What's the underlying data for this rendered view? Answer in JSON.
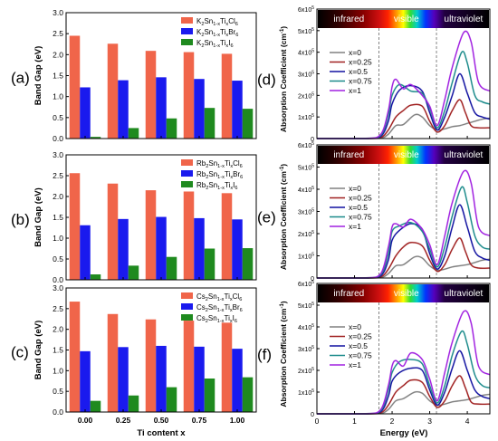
{
  "colors": {
    "bar_cl": "#f0654a",
    "bar_br": "#1a1aee",
    "bar_i": "#1f8a1f",
    "line_x0": "#808080",
    "line_x025": "#a02020",
    "line_x05": "#1010a0",
    "line_x075": "#1a8a8a",
    "line_x1": "#a020e0"
  },
  "bar_panels": {
    "x_axis_label": "Ti content x",
    "categories": [
      "0.00",
      "0.25",
      "0.50",
      "0.75",
      "1.00"
    ],
    "y_axis_label": "Band Gap (eV)",
    "y_ticks": [
      "0.0",
      "0.5",
      "1.0",
      "1.5",
      "2.0",
      "2.5",
      "3.0"
    ],
    "panels": [
      {
        "label": "(a)",
        "legend": [
          [
            "K",
            "2",
            "Sn",
            "1-x",
            "Ti",
            "x",
            "Cl",
            "6"
          ],
          [
            "K",
            "2",
            "Sn",
            "1-x",
            "Ti",
            "x",
            "Br",
            "6"
          ],
          [
            "K",
            "2",
            "Sn",
            "1-x",
            "Ti",
            "x",
            "I",
            "6"
          ]
        ]
      },
      {
        "label": "(b)",
        "legend": [
          [
            "Rb",
            "2",
            "Sn",
            "1-x",
            "Ti",
            "x",
            "Cl",
            "6"
          ],
          [
            "Rb",
            "2",
            "Sn",
            "1-x",
            "Ti",
            "x",
            "Br",
            "6"
          ],
          [
            "Rb",
            "2",
            "Sn",
            "1-x",
            "Ti",
            "x",
            "I",
            "6"
          ]
        ]
      },
      {
        "label": "(c)",
        "legend": [
          [
            "Cs",
            "2",
            "Sn",
            "1-x",
            "Ti",
            "x",
            "Cl",
            "6"
          ],
          [
            "Cs",
            "2",
            "Sn",
            "1-x",
            "Ti",
            "x",
            "Br",
            "6"
          ],
          [
            "Cs",
            "2",
            "Sn",
            "1-x",
            "Ti",
            "x",
            "I",
            "6"
          ]
        ]
      }
    ]
  },
  "line_panels": {
    "x_axis_label": "Energy (eV)",
    "x_ticks": [
      "0",
      "1",
      "2",
      "3",
      "4"
    ],
    "y_axis_label": "Absorption Coefficient (cm",
    "y_axis_label_sup": "-1",
    "y_axis_label_end": ")",
    "y_ticks": [
      [
        "0",
        ""
      ],
      [
        "1x10",
        "5"
      ],
      [
        "2x10",
        "5"
      ],
      [
        "3x10",
        "5"
      ],
      [
        "4x10",
        "5"
      ],
      [
        "5x10",
        "5"
      ],
      [
        "6x10",
        "5"
      ]
    ],
    "band_labels": [
      "infrared",
      "visible",
      "ultraviolet"
    ],
    "legend": [
      "x=0",
      "x=0.25",
      "x=0.5",
      "x=0.75",
      "x=1"
    ],
    "panels": [
      {
        "label": "(d)"
      },
      {
        "label": "(e)"
      },
      {
        "label": "(f)"
      }
    ]
  },
  "chart_data": [
    {
      "type": "bar",
      "panel": "(a)",
      "categories": [
        "0.00",
        "0.25",
        "0.50",
        "0.75",
        "1.00"
      ],
      "ylim": [
        0,
        3.0
      ],
      "ylabel": "Band Gap (eV)",
      "series": [
        {
          "name": "K2Sn1-xTixCl6",
          "values": [
            2.45,
            2.26,
            2.09,
            2.06,
            2.02
          ]
        },
        {
          "name": "K2Sn1-xTixBr6",
          "values": [
            1.22,
            1.39,
            1.46,
            1.42,
            1.38
          ]
        },
        {
          "name": "K2Sn1-xTixI6",
          "values": [
            0.04,
            0.25,
            0.48,
            0.73,
            0.71
          ]
        }
      ]
    },
    {
      "type": "bar",
      "panel": "(b)",
      "categories": [
        "0.00",
        "0.25",
        "0.50",
        "0.75",
        "1.00"
      ],
      "ylim": [
        0,
        3.0
      ],
      "ylabel": "Band Gap (eV)",
      "series": [
        {
          "name": "Rb2Sn1-xTixCl6",
          "values": [
            2.56,
            2.31,
            2.15,
            2.12,
            2.08
          ]
        },
        {
          "name": "Rb2Sn1-xTixBr6",
          "values": [
            1.31,
            1.46,
            1.51,
            1.48,
            1.45
          ]
        },
        {
          "name": "Rb2Sn1-xTixI6",
          "values": [
            0.13,
            0.34,
            0.55,
            0.75,
            0.76
          ]
        }
      ]
    },
    {
      "type": "bar",
      "panel": "(c)",
      "categories": [
        "0.00",
        "0.25",
        "0.50",
        "0.75",
        "1.00"
      ],
      "ylim": [
        0,
        3.0
      ],
      "ylabel": "Band Gap (eV)",
      "series": [
        {
          "name": "Cs2Sn1-xTixCl6",
          "values": [
            2.67,
            2.37,
            2.24,
            2.21,
            2.16
          ]
        },
        {
          "name": "Cs2Sn1-xTixBr6",
          "values": [
            1.47,
            1.57,
            1.6,
            1.58,
            1.53
          ]
        },
        {
          "name": "Cs2Sn1-xTixI6",
          "values": [
            0.27,
            0.4,
            0.6,
            0.81,
            0.84
          ]
        }
      ]
    },
    {
      "type": "line",
      "panel": "(d)",
      "xlim": [
        0,
        4.6
      ],
      "ylim": [
        0,
        600000
      ],
      "xlabel": "Energy (eV)",
      "series": [
        {
          "name": "x=0",
          "x": [
            0,
            1.2,
            1.7,
            1.9,
            2.1,
            2.3,
            2.6,
            2.8,
            3.0,
            3.2,
            3.4,
            3.6,
            3.8,
            4.0,
            4.2,
            4.4,
            4.6
          ],
          "y": [
            0,
            0,
            2000,
            20000,
            60000,
            65000,
            110000,
            100000,
            60000,
            40000,
            45000,
            55000,
            60000,
            70000,
            80000,
            90000,
            95000
          ]
        },
        {
          "name": "x=0.25",
          "x": [
            0,
            1.3,
            1.7,
            1.9,
            2.1,
            2.3,
            2.5,
            2.8,
            3.0,
            3.2,
            3.4,
            3.6,
            3.8,
            3.95,
            4.1,
            4.3,
            4.6
          ],
          "y": [
            0,
            0,
            5000,
            40000,
            100000,
            130000,
            155000,
            150000,
            80000,
            30000,
            60000,
            130000,
            180000,
            120000,
            60000,
            50000,
            50000
          ]
        },
        {
          "name": "x=0.5",
          "x": [
            0,
            1.3,
            1.7,
            1.9,
            2.0,
            2.2,
            2.5,
            2.8,
            3.0,
            3.2,
            3.4,
            3.6,
            3.8,
            4.0,
            4.2,
            4.4,
            4.6
          ],
          "y": [
            0,
            0,
            10000,
            80000,
            160000,
            225000,
            245000,
            220000,
            120000,
            40000,
            100000,
            200000,
            300000,
            210000,
            120000,
            100000,
            90000
          ]
        },
        {
          "name": "x=0.75",
          "x": [
            0,
            1.3,
            1.7,
            1.9,
            2.0,
            2.2,
            2.5,
            2.8,
            3.0,
            3.2,
            3.4,
            3.6,
            3.85,
            4.0,
            4.2,
            4.4,
            4.6
          ],
          "y": [
            0,
            0,
            15000,
            110000,
            200000,
            250000,
            220000,
            210000,
            140000,
            50000,
            130000,
            260000,
            400000,
            350000,
            200000,
            170000,
            160000
          ]
        },
        {
          "name": "x=1",
          "x": [
            0,
            1.3,
            1.7,
            1.9,
            2.0,
            2.1,
            2.3,
            2.5,
            2.8,
            3.0,
            3.2,
            3.4,
            3.6,
            3.9,
            4.1,
            4.3,
            4.6
          ],
          "y": [
            0,
            0,
            20000,
            130000,
            240000,
            275000,
            230000,
            250000,
            200000,
            150000,
            60000,
            180000,
            330000,
            490000,
            450000,
            260000,
            220000
          ]
        }
      ]
    },
    {
      "type": "line",
      "panel": "(e)",
      "xlim": [
        0,
        4.6
      ],
      "ylim": [
        0,
        600000
      ],
      "xlabel": "Energy (eV)",
      "series": [
        {
          "name": "x=0",
          "x": [
            0,
            1.2,
            1.7,
            1.9,
            2.1,
            2.3,
            2.6,
            2.8,
            3.0,
            3.2,
            3.4,
            3.6,
            3.8,
            4.0,
            4.2,
            4.4,
            4.6
          ],
          "y": [
            0,
            0,
            2000,
            20000,
            55000,
            60000,
            95000,
            90000,
            55000,
            35000,
            40000,
            50000,
            55000,
            60000,
            70000,
            80000,
            85000
          ]
        },
        {
          "name": "x=0.25",
          "x": [
            0,
            1.3,
            1.7,
            1.9,
            2.1,
            2.3,
            2.5,
            2.8,
            3.0,
            3.2,
            3.4,
            3.6,
            3.8,
            3.95,
            4.1,
            4.3,
            4.6
          ],
          "y": [
            0,
            0,
            5000,
            40000,
            100000,
            140000,
            160000,
            145000,
            80000,
            30000,
            60000,
            130000,
            180000,
            120000,
            60000,
            45000,
            45000
          ]
        },
        {
          "name": "x=0.5",
          "x": [
            0,
            1.3,
            1.7,
            1.9,
            2.0,
            2.2,
            2.5,
            2.8,
            3.0,
            3.2,
            3.4,
            3.6,
            3.8,
            4.0,
            4.2,
            4.4,
            4.6
          ],
          "y": [
            0,
            0,
            10000,
            80000,
            170000,
            215000,
            245000,
            220000,
            110000,
            40000,
            100000,
            230000,
            330000,
            230000,
            120000,
            90000,
            80000
          ]
        },
        {
          "name": "x=0.75",
          "x": [
            0,
            1.3,
            1.7,
            1.9,
            2.0,
            2.2,
            2.5,
            2.8,
            3.0,
            3.2,
            3.4,
            3.6,
            3.85,
            4.0,
            4.2,
            4.4,
            4.6
          ],
          "y": [
            0,
            0,
            15000,
            110000,
            210000,
            235000,
            250000,
            210000,
            130000,
            50000,
            140000,
            280000,
            410000,
            340000,
            190000,
            140000,
            130000
          ]
        },
        {
          "name": "x=1",
          "x": [
            0,
            1.3,
            1.7,
            1.9,
            2.0,
            2.1,
            2.3,
            2.5,
            2.8,
            3.0,
            3.2,
            3.4,
            3.6,
            3.9,
            4.1,
            4.3,
            4.6
          ],
          "y": [
            0,
            0,
            20000,
            140000,
            230000,
            245000,
            230000,
            265000,
            220000,
            150000,
            60000,
            190000,
            340000,
            480000,
            430000,
            230000,
            190000
          ]
        }
      ]
    },
    {
      "type": "line",
      "panel": "(f)",
      "xlim": [
        0,
        4.6
      ],
      "ylim": [
        0,
        600000
      ],
      "xlabel": "Energy (eV)",
      "series": [
        {
          "name": "x=0",
          "x": [
            0,
            1.2,
            1.7,
            1.9,
            2.1,
            2.3,
            2.6,
            2.8,
            3.0,
            3.2,
            3.4,
            3.6,
            3.8,
            4.0,
            4.2,
            4.4,
            4.6
          ],
          "y": [
            0,
            0,
            2000,
            20000,
            60000,
            70000,
            100000,
            95000,
            60000,
            40000,
            45000,
            55000,
            60000,
            65000,
            75000,
            85000,
            90000
          ]
        },
        {
          "name": "x=0.25",
          "x": [
            0,
            1.3,
            1.7,
            1.9,
            2.1,
            2.3,
            2.5,
            2.8,
            3.0,
            3.2,
            3.4,
            3.6,
            3.8,
            3.95,
            4.1,
            4.3,
            4.6
          ],
          "y": [
            0,
            0,
            5000,
            40000,
            100000,
            130000,
            155000,
            145000,
            80000,
            30000,
            60000,
            130000,
            175000,
            120000,
            55000,
            45000,
            45000
          ]
        },
        {
          "name": "x=0.5",
          "x": [
            0,
            1.3,
            1.7,
            1.9,
            2.0,
            2.2,
            2.5,
            2.8,
            3.0,
            3.2,
            3.4,
            3.6,
            3.8,
            4.0,
            4.2,
            4.4,
            4.6
          ],
          "y": [
            0,
            0,
            10000,
            80000,
            150000,
            190000,
            210000,
            200000,
            110000,
            40000,
            100000,
            210000,
            290000,
            200000,
            110000,
            80000,
            70000
          ]
        },
        {
          "name": "x=0.75",
          "x": [
            0,
            1.3,
            1.7,
            1.9,
            2.0,
            2.2,
            2.5,
            2.8,
            3.0,
            3.2,
            3.4,
            3.6,
            3.85,
            4.0,
            4.2,
            4.4,
            4.6
          ],
          "y": [
            0,
            0,
            15000,
            110000,
            190000,
            240000,
            250000,
            230000,
            130000,
            50000,
            130000,
            270000,
            380000,
            320000,
            180000,
            130000,
            120000
          ]
        },
        {
          "name": "x=1",
          "x": [
            0,
            1.3,
            1.7,
            1.9,
            2.0,
            2.1,
            2.3,
            2.5,
            2.8,
            3.0,
            3.2,
            3.4,
            3.6,
            3.9,
            4.1,
            4.3,
            4.6
          ],
          "y": [
            0,
            0,
            20000,
            130000,
            220000,
            245000,
            220000,
            280000,
            250000,
            160000,
            60000,
            190000,
            330000,
            470000,
            420000,
            220000,
            180000
          ]
        }
      ]
    }
  ]
}
